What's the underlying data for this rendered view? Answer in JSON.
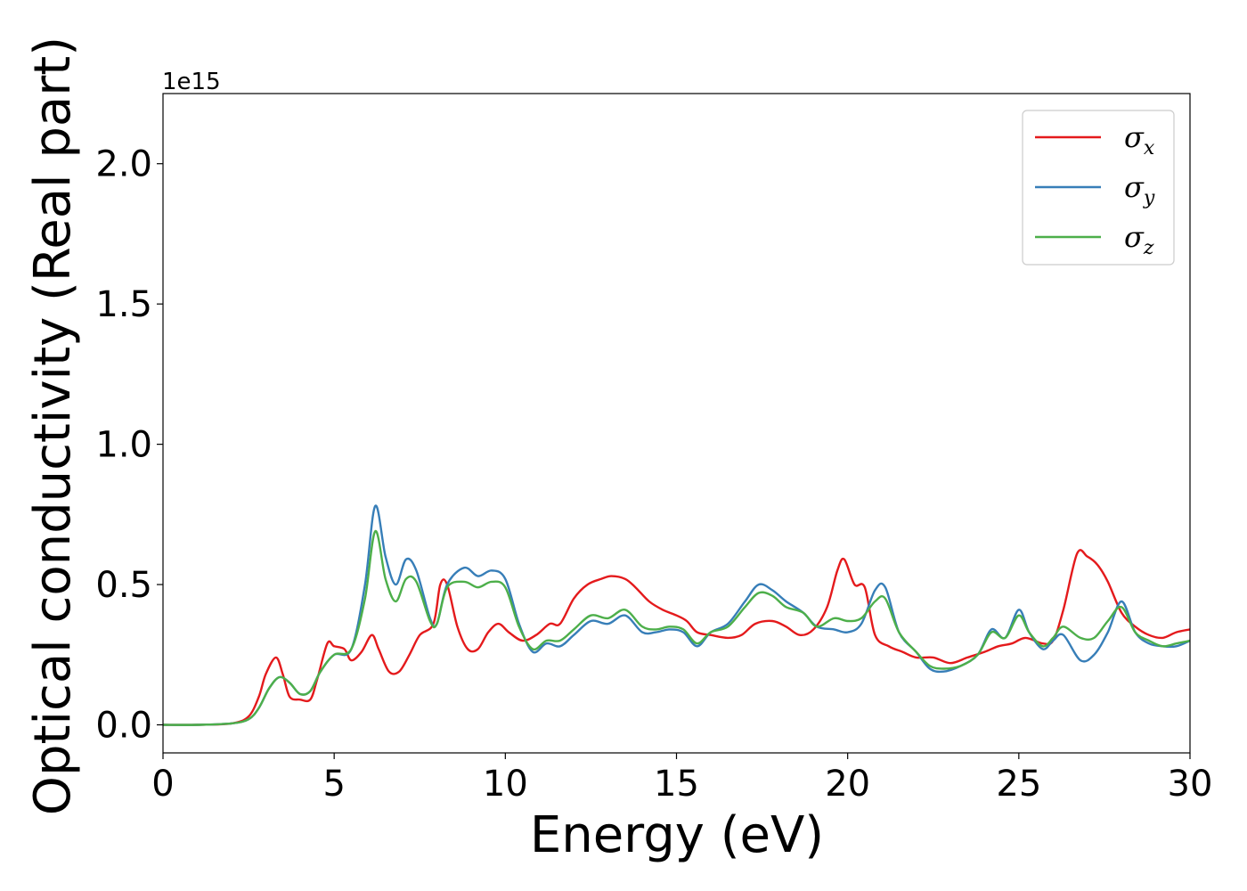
{
  "chart_data": {
    "type": "line",
    "title": "",
    "xlabel": "Energy (eV)",
    "ylabel": "Optical conductivity (Real part)",
    "y_offset_label": "1e15",
    "y_scale_factor": 1000000000000000.0,
    "xlim": [
      0,
      30
    ],
    "ylim": [
      -0.1,
      2.25
    ],
    "x_ticks": [
      0,
      5,
      10,
      15,
      20,
      25,
      30
    ],
    "x_tick_labels": [
      "0",
      "5",
      "10",
      "15",
      "20",
      "25",
      "30"
    ],
    "y_ticks": [
      0.0,
      0.5,
      1.0,
      1.5,
      2.0
    ],
    "y_tick_labels": [
      "0.0",
      "0.5",
      "1.0",
      "1.5",
      "2.0"
    ],
    "grid": false,
    "legend_position": "top-right",
    "series": [
      {
        "name": "σx",
        "symbol": "σ",
        "subscript": "x",
        "color": "#e41a1c",
        "points": [
          [
            0,
            0
          ],
          [
            1,
            0
          ],
          [
            2,
            0.005
          ],
          [
            2.5,
            0.03
          ],
          [
            2.8,
            0.1
          ],
          [
            3,
            0.18
          ],
          [
            3.3,
            0.24
          ],
          [
            3.5,
            0.18
          ],
          [
            3.7,
            0.1
          ],
          [
            4,
            0.09
          ],
          [
            4.3,
            0.09
          ],
          [
            4.5,
            0.16
          ],
          [
            4.8,
            0.29
          ],
          [
            5,
            0.28
          ],
          [
            5.3,
            0.27
          ],
          [
            5.5,
            0.23
          ],
          [
            5.8,
            0.26
          ],
          [
            6.1,
            0.32
          ],
          [
            6.3,
            0.27
          ],
          [
            6.6,
            0.19
          ],
          [
            6.9,
            0.19
          ],
          [
            7.2,
            0.25
          ],
          [
            7.5,
            0.32
          ],
          [
            7.9,
            0.36
          ],
          [
            8.1,
            0.5
          ],
          [
            8.3,
            0.5
          ],
          [
            8.6,
            0.35
          ],
          [
            8.9,
            0.27
          ],
          [
            9.2,
            0.27
          ],
          [
            9.5,
            0.33
          ],
          [
            9.8,
            0.36
          ],
          [
            10.1,
            0.33
          ],
          [
            10.5,
            0.3
          ],
          [
            10.9,
            0.32
          ],
          [
            11.3,
            0.36
          ],
          [
            11.6,
            0.36
          ],
          [
            12,
            0.45
          ],
          [
            12.4,
            0.5
          ],
          [
            12.8,
            0.52
          ],
          [
            13.1,
            0.53
          ],
          [
            13.5,
            0.52
          ],
          [
            13.8,
            0.49
          ],
          [
            14.2,
            0.44
          ],
          [
            14.6,
            0.41
          ],
          [
            15,
            0.39
          ],
          [
            15.3,
            0.37
          ],
          [
            15.6,
            0.33
          ],
          [
            16,
            0.32
          ],
          [
            16.5,
            0.31
          ],
          [
            16.9,
            0.32
          ],
          [
            17.3,
            0.36
          ],
          [
            17.8,
            0.37
          ],
          [
            18.2,
            0.35
          ],
          [
            18.6,
            0.32
          ],
          [
            19,
            0.34
          ],
          [
            19.4,
            0.42
          ],
          [
            19.7,
            0.55
          ],
          [
            19.9,
            0.59
          ],
          [
            20.2,
            0.5
          ],
          [
            20.5,
            0.49
          ],
          [
            20.8,
            0.32
          ],
          [
            21.2,
            0.28
          ],
          [
            21.6,
            0.26
          ],
          [
            22,
            0.24
          ],
          [
            22.5,
            0.24
          ],
          [
            23,
            0.22
          ],
          [
            23.5,
            0.24
          ],
          [
            24,
            0.26
          ],
          [
            24.4,
            0.28
          ],
          [
            24.8,
            0.29
          ],
          [
            25.2,
            0.31
          ],
          [
            25.7,
            0.29
          ],
          [
            26,
            0.3
          ],
          [
            26.3,
            0.41
          ],
          [
            26.7,
            0.61
          ],
          [
            27,
            0.6
          ],
          [
            27.3,
            0.57
          ],
          [
            27.6,
            0.51
          ],
          [
            28,
            0.4
          ],
          [
            28.4,
            0.35
          ],
          [
            28.8,
            0.32
          ],
          [
            29.2,
            0.31
          ],
          [
            29.6,
            0.33
          ],
          [
            30,
            0.34
          ]
        ]
      },
      {
        "name": "σy",
        "symbol": "σ",
        "subscript": "y",
        "color": "#377eb8",
        "points": [
          [
            0,
            0
          ],
          [
            1,
            0
          ],
          [
            2,
            0.005
          ],
          [
            2.5,
            0.02
          ],
          [
            2.8,
            0.06
          ],
          [
            3.1,
            0.13
          ],
          [
            3.4,
            0.17
          ],
          [
            3.7,
            0.15
          ],
          [
            4,
            0.11
          ],
          [
            4.3,
            0.12
          ],
          [
            4.6,
            0.19
          ],
          [
            5,
            0.25
          ],
          [
            5.5,
            0.27
          ],
          [
            5.9,
            0.5
          ],
          [
            6.2,
            0.78
          ],
          [
            6.5,
            0.6
          ],
          [
            6.8,
            0.5
          ],
          [
            7.1,
            0.59
          ],
          [
            7.4,
            0.55
          ],
          [
            7.8,
            0.38
          ],
          [
            8,
            0.36
          ],
          [
            8.3,
            0.5
          ],
          [
            8.8,
            0.56
          ],
          [
            9.2,
            0.53
          ],
          [
            9.6,
            0.55
          ],
          [
            10,
            0.52
          ],
          [
            10.4,
            0.36
          ],
          [
            10.8,
            0.26
          ],
          [
            11.2,
            0.29
          ],
          [
            11.6,
            0.28
          ],
          [
            12,
            0.32
          ],
          [
            12.5,
            0.37
          ],
          [
            13,
            0.36
          ],
          [
            13.5,
            0.39
          ],
          [
            14,
            0.33
          ],
          [
            14.4,
            0.33
          ],
          [
            14.8,
            0.34
          ],
          [
            15.2,
            0.33
          ],
          [
            15.6,
            0.28
          ],
          [
            16,
            0.33
          ],
          [
            16.5,
            0.36
          ],
          [
            17,
            0.44
          ],
          [
            17.4,
            0.5
          ],
          [
            17.8,
            0.48
          ],
          [
            18.2,
            0.44
          ],
          [
            18.7,
            0.4
          ],
          [
            19.1,
            0.35
          ],
          [
            19.6,
            0.34
          ],
          [
            20,
            0.33
          ],
          [
            20.4,
            0.36
          ],
          [
            20.8,
            0.48
          ],
          [
            21.1,
            0.49
          ],
          [
            21.5,
            0.33
          ],
          [
            22,
            0.26
          ],
          [
            22.4,
            0.2
          ],
          [
            22.8,
            0.19
          ],
          [
            23.3,
            0.21
          ],
          [
            23.8,
            0.25
          ],
          [
            24.2,
            0.34
          ],
          [
            24.6,
            0.31
          ],
          [
            25,
            0.41
          ],
          [
            25.3,
            0.33
          ],
          [
            25.7,
            0.27
          ],
          [
            26,
            0.3
          ],
          [
            26.3,
            0.32
          ],
          [
            26.8,
            0.23
          ],
          [
            27.2,
            0.25
          ],
          [
            27.6,
            0.33
          ],
          [
            28,
            0.44
          ],
          [
            28.4,
            0.33
          ],
          [
            28.8,
            0.29
          ],
          [
            29.2,
            0.28
          ],
          [
            29.6,
            0.28
          ],
          [
            30,
            0.3
          ]
        ]
      },
      {
        "name": "σz",
        "symbol": "σ",
        "subscript": "z",
        "color": "#4daf4a",
        "points": [
          [
            0,
            0
          ],
          [
            1,
            0
          ],
          [
            2,
            0.005
          ],
          [
            2.5,
            0.02
          ],
          [
            2.8,
            0.06
          ],
          [
            3.1,
            0.13
          ],
          [
            3.4,
            0.17
          ],
          [
            3.7,
            0.15
          ],
          [
            4,
            0.11
          ],
          [
            4.3,
            0.12
          ],
          [
            4.6,
            0.19
          ],
          [
            5,
            0.25
          ],
          [
            5.5,
            0.27
          ],
          [
            5.9,
            0.45
          ],
          [
            6.2,
            0.69
          ],
          [
            6.5,
            0.52
          ],
          [
            6.8,
            0.44
          ],
          [
            7.1,
            0.52
          ],
          [
            7.4,
            0.51
          ],
          [
            7.8,
            0.37
          ],
          [
            8,
            0.36
          ],
          [
            8.3,
            0.49
          ],
          [
            8.8,
            0.51
          ],
          [
            9.2,
            0.49
          ],
          [
            9.6,
            0.51
          ],
          [
            10,
            0.49
          ],
          [
            10.4,
            0.35
          ],
          [
            10.8,
            0.27
          ],
          [
            11.2,
            0.3
          ],
          [
            11.6,
            0.3
          ],
          [
            12,
            0.34
          ],
          [
            12.5,
            0.39
          ],
          [
            13,
            0.38
          ],
          [
            13.5,
            0.41
          ],
          [
            14,
            0.35
          ],
          [
            14.4,
            0.34
          ],
          [
            14.8,
            0.35
          ],
          [
            15.2,
            0.34
          ],
          [
            15.6,
            0.29
          ],
          [
            16,
            0.33
          ],
          [
            16.5,
            0.35
          ],
          [
            17,
            0.42
          ],
          [
            17.4,
            0.47
          ],
          [
            17.8,
            0.46
          ],
          [
            18.2,
            0.42
          ],
          [
            18.7,
            0.4
          ],
          [
            19.1,
            0.35
          ],
          [
            19.6,
            0.38
          ],
          [
            20,
            0.37
          ],
          [
            20.4,
            0.38
          ],
          [
            20.8,
            0.44
          ],
          [
            21.1,
            0.45
          ],
          [
            21.5,
            0.33
          ],
          [
            22,
            0.26
          ],
          [
            22.4,
            0.21
          ],
          [
            22.8,
            0.2
          ],
          [
            23.3,
            0.21
          ],
          [
            23.8,
            0.25
          ],
          [
            24.2,
            0.33
          ],
          [
            24.6,
            0.31
          ],
          [
            25,
            0.39
          ],
          [
            25.3,
            0.33
          ],
          [
            25.7,
            0.28
          ],
          [
            26,
            0.31
          ],
          [
            26.3,
            0.35
          ],
          [
            26.8,
            0.31
          ],
          [
            27.2,
            0.31
          ],
          [
            27.6,
            0.37
          ],
          [
            28,
            0.42
          ],
          [
            28.4,
            0.33
          ],
          [
            28.8,
            0.3
          ],
          [
            29.2,
            0.28
          ],
          [
            29.6,
            0.29
          ],
          [
            30,
            0.3
          ]
        ]
      }
    ]
  }
}
